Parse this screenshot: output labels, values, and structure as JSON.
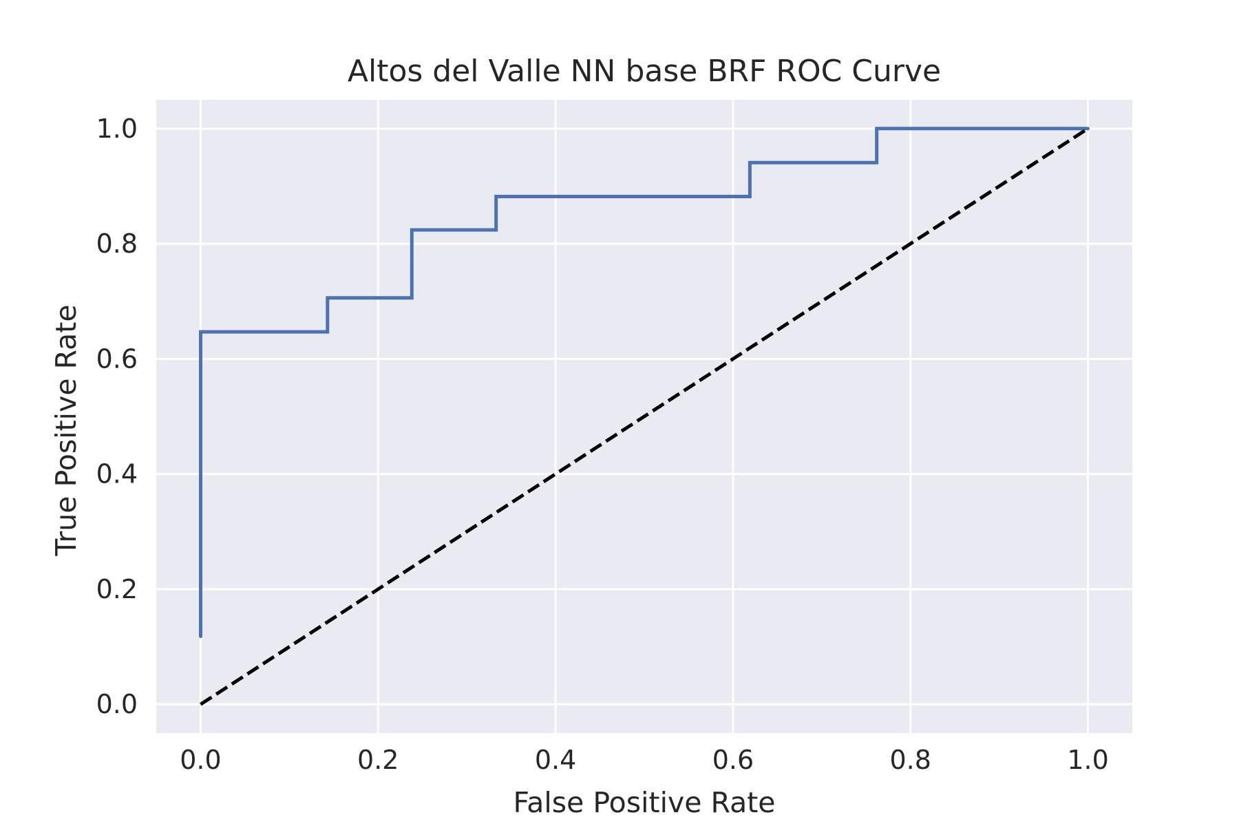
{
  "chart_data": {
    "type": "line",
    "title": "Altos del Valle NN base BRF ROC Curve",
    "xlabel": "False Positive Rate",
    "ylabel": "True Positive Rate",
    "xlim": [
      -0.05,
      1.05
    ],
    "ylim": [
      -0.05,
      1.05
    ],
    "xticks": [
      0.0,
      0.2,
      0.4,
      0.6,
      0.8,
      1.0
    ],
    "yticks": [
      0.0,
      0.2,
      0.4,
      0.6,
      0.8,
      1.0
    ],
    "xtick_labels": [
      "0.0",
      "0.2",
      "0.4",
      "0.6",
      "0.8",
      "1.0"
    ],
    "ytick_labels": [
      "0.0",
      "0.2",
      "0.4",
      "0.6",
      "0.8",
      "1.0"
    ],
    "grid": true,
    "series": [
      {
        "style": "solid",
        "color": "#4c72b0",
        "x": [
          0.0,
          0.0,
          0.143,
          0.143,
          0.238,
          0.238,
          0.333,
          0.333,
          0.619,
          0.619,
          0.762,
          0.762,
          1.0
        ],
        "y": [
          0.118,
          0.647,
          0.647,
          0.706,
          0.706,
          0.824,
          0.824,
          0.882,
          0.882,
          0.941,
          0.941,
          1.0,
          1.0
        ]
      },
      {
        "style": "dashed",
        "color": "#000000",
        "x": [
          0.0,
          1.0
        ],
        "y": [
          0.0,
          1.0
        ]
      }
    ]
  },
  "colors": {
    "plot_background": "#eaeaf2",
    "grid": "#ffffff",
    "text": "#262626"
  }
}
